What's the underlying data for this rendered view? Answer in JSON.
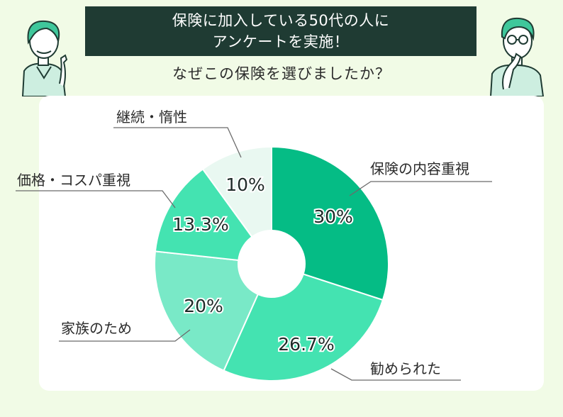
{
  "header": {
    "title_line1": "保険に加入している50代の人に",
    "title_line2": "アンケートを実施！",
    "question": "なぜこの保険を選びましたか？"
  },
  "chart_data": {
    "type": "pie",
    "donut": true,
    "start": "top",
    "direction": "clockwise",
    "categories": [
      "保険の内容重視",
      "勧められた",
      "家族のため",
      "価格・コスパ重視",
      "継続・惰性"
    ],
    "values": [
      30,
      26.7,
      20,
      13.3,
      10
    ],
    "value_labels": [
      "30%",
      "26.7%",
      "20%",
      "13.3%",
      "10%"
    ],
    "colors": [
      "#05bc85",
      "#44e3b1",
      "#79e9c7",
      "#44e3b1",
      "#e9f8f1"
    ]
  }
}
